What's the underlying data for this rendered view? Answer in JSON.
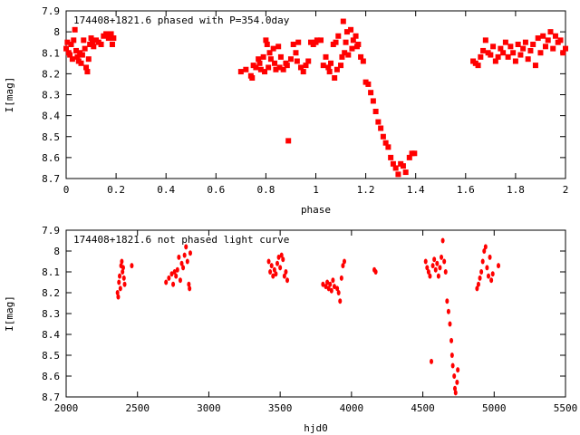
{
  "colors": {
    "points": "#ff0000",
    "frame": "#000000",
    "background": "#ffffff"
  },
  "chart_data": [
    {
      "type": "scatter",
      "title": "174408+1821.6 phased with P=354.0day",
      "xlabel": "phase",
      "ylabel": "I[mag]",
      "xlim": [
        0,
        2
      ],
      "ylim": [
        7.9,
        8.7
      ],
      "y_inverted": true,
      "grid": false,
      "legend": "none",
      "xticks": [
        "0",
        "0.2",
        "0.4",
        "0.6",
        "0.8",
        "1",
        "1.2",
        "1.4",
        "1.6",
        "1.8",
        "2"
      ],
      "yticks": [
        "7.9",
        "8",
        "8.1",
        "8.2",
        "8.3",
        "8.4",
        "8.5",
        "8.6",
        "8.7"
      ],
      "series": [
        {
          "points": [
            [
              0.0,
              8.08
            ],
            [
              0.005,
              8.05
            ],
            [
              0.01,
              8.1
            ],
            [
              0.015,
              8.11
            ],
            [
              0.02,
              8.06
            ],
            [
              0.025,
              8.13
            ],
            [
              0.03,
              8.04
            ],
            [
              0.035,
              7.99
            ],
            [
              0.04,
              8.09
            ],
            [
              0.045,
              8.12
            ],
            [
              0.05,
              8.14
            ],
            [
              0.055,
              8.1
            ],
            [
              0.06,
              8.15
            ],
            [
              0.065,
              8.11
            ],
            [
              0.07,
              8.04
            ],
            [
              0.075,
              8.08
            ],
            [
              0.08,
              8.17
            ],
            [
              0.085,
              8.19
            ],
            [
              0.09,
              8.13
            ],
            [
              0.095,
              8.06
            ],
            [
              0.1,
              8.03
            ],
            [
              0.105,
              8.05
            ],
            [
              0.11,
              8.07
            ],
            [
              0.12,
              8.04
            ],
            [
              0.13,
              8.05
            ],
            [
              0.14,
              8.06
            ],
            [
              0.15,
              8.02
            ],
            [
              0.16,
              8.01
            ],
            [
              0.17,
              8.03
            ],
            [
              0.18,
              8.01
            ],
            [
              0.185,
              8.06
            ],
            [
              0.19,
              8.03
            ],
            [
              0.7,
              8.19
            ],
            [
              0.72,
              8.18
            ],
            [
              0.74,
              8.21
            ],
            [
              0.745,
              8.22
            ],
            [
              0.75,
              8.16
            ],
            [
              0.76,
              8.17
            ],
            [
              0.77,
              8.13
            ],
            [
              0.775,
              8.15
            ],
            [
              0.78,
              8.18
            ],
            [
              0.79,
              8.12
            ],
            [
              0.795,
              8.19
            ],
            [
              0.8,
              8.04
            ],
            [
              0.805,
              8.06
            ],
            [
              0.81,
              8.17
            ],
            [
              0.815,
              8.1
            ],
            [
              0.82,
              8.13
            ],
            [
              0.83,
              8.08
            ],
            [
              0.835,
              8.15
            ],
            [
              0.84,
              8.18
            ],
            [
              0.85,
              8.07
            ],
            [
              0.855,
              8.17
            ],
            [
              0.86,
              8.12
            ],
            [
              0.87,
              8.18
            ],
            [
              0.88,
              8.15
            ],
            [
              0.885,
              8.16
            ],
            [
              0.89,
              8.52
            ],
            [
              0.9,
              8.13
            ],
            [
              0.91,
              8.06
            ],
            [
              0.92,
              8.1
            ],
            [
              0.925,
              8.14
            ],
            [
              0.93,
              8.05
            ],
            [
              0.94,
              8.17
            ],
            [
              0.95,
              8.19
            ],
            [
              0.96,
              8.16
            ],
            [
              0.97,
              8.14
            ],
            [
              0.98,
              8.05
            ],
            [
              0.99,
              8.06
            ],
            [
              1.0,
              8.05
            ],
            [
              1.005,
              8.04
            ],
            [
              1.02,
              8.04
            ],
            [
              1.03,
              8.16
            ],
            [
              1.04,
              8.12
            ],
            [
              1.05,
              8.17
            ],
            [
              1.055,
              8.19
            ],
            [
              1.06,
              8.15
            ],
            [
              1.07,
              8.06
            ],
            [
              1.075,
              8.22
            ],
            [
              1.08,
              8.05
            ],
            [
              1.085,
              8.18
            ],
            [
              1.09,
              8.02
            ],
            [
              1.1,
              8.16
            ],
            [
              1.105,
              8.12
            ],
            [
              1.11,
              7.95
            ],
            [
              1.115,
              8.1
            ],
            [
              1.12,
              8.05
            ],
            [
              1.125,
              8.0
            ],
            [
              1.13,
              8.11
            ],
            [
              1.14,
              7.99
            ],
            [
              1.145,
              8.08
            ],
            [
              1.15,
              8.04
            ],
            [
              1.16,
              8.02
            ],
            [
              1.165,
              8.07
            ],
            [
              1.17,
              8.06
            ],
            [
              1.18,
              8.12
            ],
            [
              1.19,
              8.14
            ],
            [
              1.2,
              8.24
            ],
            [
              1.21,
              8.25
            ],
            [
              1.22,
              8.29
            ],
            [
              1.23,
              8.33
            ],
            [
              1.24,
              8.38
            ],
            [
              1.25,
              8.43
            ],
            [
              1.26,
              8.46
            ],
            [
              1.27,
              8.5
            ],
            [
              1.28,
              8.53
            ],
            [
              1.29,
              8.55
            ],
            [
              1.3,
              8.6
            ],
            [
              1.31,
              8.63
            ],
            [
              1.32,
              8.65
            ],
            [
              1.33,
              8.68
            ],
            [
              1.34,
              8.63
            ],
            [
              1.35,
              8.64
            ],
            [
              1.36,
              8.67
            ],
            [
              1.375,
              8.6
            ],
            [
              1.385,
              8.58
            ],
            [
              1.395,
              8.58
            ],
            [
              1.63,
              8.14
            ],
            [
              1.64,
              8.15
            ],
            [
              1.65,
              8.16
            ],
            [
              1.66,
              8.12
            ],
            [
              1.67,
              8.09
            ],
            [
              1.68,
              8.04
            ],
            [
              1.69,
              8.1
            ],
            [
              1.7,
              8.11
            ],
            [
              1.71,
              8.07
            ],
            [
              1.72,
              8.14
            ],
            [
              1.73,
              8.12
            ],
            [
              1.74,
              8.08
            ],
            [
              1.75,
              8.1
            ],
            [
              1.76,
              8.05
            ],
            [
              1.77,
              8.12
            ],
            [
              1.78,
              8.07
            ],
            [
              1.79,
              8.1
            ],
            [
              1.8,
              8.14
            ],
            [
              1.81,
              8.06
            ],
            [
              1.82,
              8.11
            ],
            [
              1.83,
              8.08
            ],
            [
              1.84,
              8.05
            ],
            [
              1.85,
              8.13
            ],
            [
              1.86,
              8.09
            ],
            [
              1.87,
              8.06
            ],
            [
              1.88,
              8.16
            ],
            [
              1.89,
              8.03
            ],
            [
              1.9,
              8.1
            ],
            [
              1.91,
              8.02
            ],
            [
              1.92,
              8.07
            ],
            [
              1.93,
              8.04
            ],
            [
              1.94,
              8.0
            ],
            [
              1.95,
              8.08
            ],
            [
              1.96,
              8.02
            ],
            [
              1.97,
              8.05
            ],
            [
              1.98,
              8.04
            ],
            [
              1.99,
              8.1
            ],
            [
              2.0,
              8.08
            ]
          ]
        }
      ]
    },
    {
      "type": "scatter",
      "title": "174408+1821.6 not phased light curve",
      "xlabel": "hjd0",
      "ylabel": "I[mag]",
      "xlim": [
        2000,
        5500
      ],
      "ylim": [
        7.9,
        8.7
      ],
      "y_inverted": true,
      "grid": false,
      "legend": "none",
      "xticks": [
        "2000",
        "2500",
        "3000",
        "3500",
        "4000",
        "4500",
        "5000",
        "5500"
      ],
      "yticks": [
        "7.9",
        "8",
        "8.1",
        "8.2",
        "8.3",
        "8.4",
        "8.5",
        "8.6",
        "8.7"
      ],
      "series": [
        {
          "points": [
            [
              2360,
              8.2
            ],
            [
              2365,
              8.22
            ],
            [
              2370,
              8.15
            ],
            [
              2375,
              8.12
            ],
            [
              2380,
              8.18
            ],
            [
              2385,
              8.07
            ],
            [
              2390,
              8.05
            ],
            [
              2395,
              8.1
            ],
            [
              2400,
              8.08
            ],
            [
              2405,
              8.13
            ],
            [
              2410,
              8.16
            ],
            [
              2460,
              8.07
            ],
            [
              2700,
              8.15
            ],
            [
              2720,
              8.13
            ],
            [
              2740,
              8.11
            ],
            [
              2750,
              8.16
            ],
            [
              2760,
              8.1
            ],
            [
              2770,
              8.12
            ],
            [
              2780,
              8.09
            ],
            [
              2790,
              8.03
            ],
            [
              2800,
              8.14
            ],
            [
              2810,
              8.06
            ],
            [
              2820,
              8.08
            ],
            [
              2830,
              8.02
            ],
            [
              2840,
              7.98
            ],
            [
              2850,
              8.05
            ],
            [
              2860,
              8.16
            ],
            [
              2865,
              8.18
            ],
            [
              2870,
              8.01
            ],
            [
              3420,
              8.05
            ],
            [
              3430,
              8.1
            ],
            [
              3440,
              8.07
            ],
            [
              3450,
              8.12
            ],
            [
              3460,
              8.09
            ],
            [
              3470,
              8.11
            ],
            [
              3480,
              8.06
            ],
            [
              3490,
              8.03
            ],
            [
              3500,
              8.08
            ],
            [
              3510,
              8.02
            ],
            [
              3520,
              8.04
            ],
            [
              3530,
              8.12
            ],
            [
              3540,
              8.1
            ],
            [
              3550,
              8.14
            ],
            [
              3800,
              8.16
            ],
            [
              3820,
              8.17
            ],
            [
              3830,
              8.15
            ],
            [
              3840,
              8.18
            ],
            [
              3850,
              8.16
            ],
            [
              3860,
              8.19
            ],
            [
              3870,
              8.14
            ],
            [
              3880,
              8.17
            ],
            [
              3900,
              8.18
            ],
            [
              3910,
              8.2
            ],
            [
              3920,
              8.24
            ],
            [
              3930,
              8.13
            ],
            [
              3940,
              8.07
            ],
            [
              3950,
              8.05
            ],
            [
              4160,
              8.09
            ],
            [
              4170,
              8.1
            ],
            [
              4520,
              8.05
            ],
            [
              4530,
              8.08
            ],
            [
              4540,
              8.1
            ],
            [
              4550,
              8.12
            ],
            [
              4560,
              8.53
            ],
            [
              4570,
              8.07
            ],
            [
              4580,
              8.04
            ],
            [
              4590,
              8.09
            ],
            [
              4600,
              8.06
            ],
            [
              4610,
              8.12
            ],
            [
              4620,
              8.08
            ],
            [
              4630,
              8.03
            ],
            [
              4640,
              7.95
            ],
            [
              4650,
              8.05
            ],
            [
              4660,
              8.1
            ],
            [
              4670,
              8.24
            ],
            [
              4680,
              8.29
            ],
            [
              4690,
              8.35
            ],
            [
              4700,
              8.43
            ],
            [
              4705,
              8.5
            ],
            [
              4710,
              8.55
            ],
            [
              4720,
              8.6
            ],
            [
              4725,
              8.66
            ],
            [
              4730,
              8.68
            ],
            [
              4740,
              8.63
            ],
            [
              4745,
              8.57
            ],
            [
              4880,
              8.18
            ],
            [
              4890,
              8.16
            ],
            [
              4900,
              8.13
            ],
            [
              4910,
              8.1
            ],
            [
              4920,
              8.05
            ],
            [
              4930,
              8.0
            ],
            [
              4940,
              7.98
            ],
            [
              4950,
              8.08
            ],
            [
              4960,
              8.12
            ],
            [
              4970,
              8.03
            ],
            [
              4980,
              8.14
            ],
            [
              4990,
              8.11
            ],
            [
              5030,
              8.07
            ]
          ]
        }
      ]
    }
  ]
}
